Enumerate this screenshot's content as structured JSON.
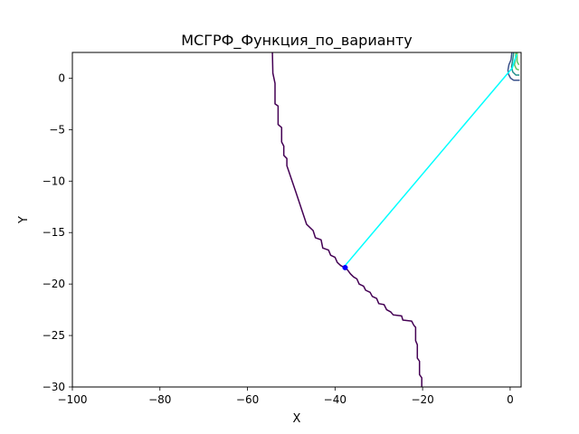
{
  "chart_data": {
    "type": "line",
    "title": "МСГРФ_Функция_по_варианту",
    "xlabel": "X",
    "ylabel": "Y",
    "xlim": [
      -100,
      2.5
    ],
    "ylim": [
      -30,
      2.5
    ],
    "xticks": [
      -100,
      -80,
      -60,
      -40,
      -20,
      0
    ],
    "yticks": [
      0,
      -5,
      -10,
      -15,
      -20,
      -25,
      -30
    ],
    "xtick_labels": [
      "−100",
      "−80",
      "−60",
      "−40",
      "−20",
      "0"
    ],
    "ytick_labels": [
      "0",
      "−5",
      "−10",
      "−15",
      "−20",
      "−25",
      "−30"
    ],
    "grid": false,
    "contour_lines": [
      {
        "color": "#440154",
        "points": [
          [
            -54.3,
            2.5
          ],
          [
            -54.2,
            0.5
          ],
          [
            -53.7,
            -0.5
          ],
          [
            -53.7,
            -2.5
          ],
          [
            -53.0,
            -2.7
          ],
          [
            -53.0,
            -4.5
          ],
          [
            -52.2,
            -4.8
          ],
          [
            -52.2,
            -6.2
          ],
          [
            -51.7,
            -6.6
          ],
          [
            -51.7,
            -7.5
          ],
          [
            -51.0,
            -7.8
          ],
          [
            -51.0,
            -8.5
          ],
          [
            -49.0,
            -11.0
          ],
          [
            -46.5,
            -14.2
          ],
          [
            -45.0,
            -14.8
          ],
          [
            -44.5,
            -15.5
          ],
          [
            -43.2,
            -15.7
          ],
          [
            -42.8,
            -16.5
          ],
          [
            -41.5,
            -16.7
          ],
          [
            -41.0,
            -17.2
          ],
          [
            -40.0,
            -17.4
          ],
          [
            -39.5,
            -17.9
          ],
          [
            -38.7,
            -18.2
          ],
          [
            -37.9,
            -18.4
          ],
          [
            -37.2,
            -18.6
          ],
          [
            -36.5,
            -19.0
          ],
          [
            -35.8,
            -19.3
          ],
          [
            -35.0,
            -19.5
          ],
          [
            -34.5,
            -20.0
          ],
          [
            -33.5,
            -20.2
          ],
          [
            -33.0,
            -20.6
          ],
          [
            -32.0,
            -20.8
          ],
          [
            -31.5,
            -21.2
          ],
          [
            -30.5,
            -21.4
          ],
          [
            -30.0,
            -21.9
          ],
          [
            -28.8,
            -22.0
          ],
          [
            -28.2,
            -22.5
          ],
          [
            -27.3,
            -22.7
          ],
          [
            -26.7,
            -23.0
          ],
          [
            -24.8,
            -23.1
          ],
          [
            -24.5,
            -23.5
          ],
          [
            -22.5,
            -23.6
          ],
          [
            -22.0,
            -24.0
          ],
          [
            -21.6,
            -24.2
          ],
          [
            -21.6,
            -25.5
          ],
          [
            -21.2,
            -25.9
          ],
          [
            -21.2,
            -27.2
          ],
          [
            -20.7,
            -27.5
          ],
          [
            -20.7,
            -28.8
          ],
          [
            -20.2,
            -29.1
          ],
          [
            -20.2,
            -30.0
          ]
        ]
      },
      {
        "color": "#3b528b",
        "points": [
          [
            0.4,
            2.5
          ],
          [
            0.2,
            1.8
          ],
          [
            -0.3,
            1.3
          ],
          [
            -0.5,
            0.8
          ],
          [
            -0.4,
            0.4
          ],
          [
            0.1,
            0.0
          ],
          [
            0.8,
            -0.2
          ],
          [
            1.6,
            -0.2
          ],
          [
            2.2,
            -0.2
          ]
        ]
      },
      {
        "color": "#21918c",
        "points": [
          [
            0.8,
            2.5
          ],
          [
            0.6,
            1.8
          ],
          [
            0.3,
            1.1
          ],
          [
            0.6,
            0.6
          ],
          [
            1.3,
            0.3
          ],
          [
            2.1,
            0.3
          ]
        ]
      },
      {
        "color": "#5ec962",
        "points": [
          [
            1.3,
            2.5
          ],
          [
            1.2,
            1.8
          ],
          [
            1.0,
            1.3
          ],
          [
            1.4,
            0.9
          ],
          [
            2.0,
            0.8
          ]
        ]
      },
      {
        "color": "#5ec962",
        "points": [
          [
            1.6,
            2.5
          ],
          [
            1.6,
            1.6
          ],
          [
            2.0,
            1.3
          ]
        ]
      }
    ],
    "path": {
      "color": "#00ffff",
      "points": [
        [
          -37.7,
          -18.2
        ],
        [
          0.5,
          1.0
        ],
        [
          1.0,
          1.7
        ],
        [
          1.5,
          2.3
        ]
      ]
    },
    "marker": {
      "color": "#0000ff",
      "point": [
        -37.7,
        -18.4
      ]
    }
  }
}
